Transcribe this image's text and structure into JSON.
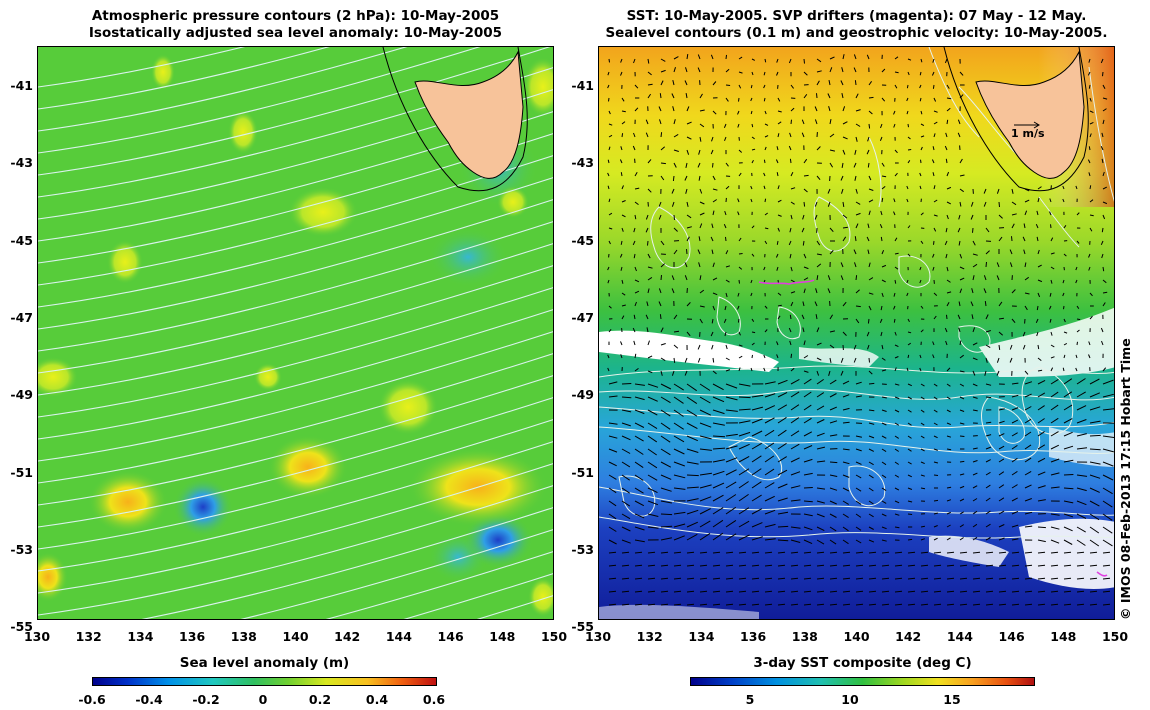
{
  "left_panel": {
    "title_line1": "Atmospheric pressure contours (2 hPa): 10-May-2005",
    "title_line2": "Isostatically adjusted sea level anomaly: 10-May-2005",
    "y_ticks": [
      "-41",
      "-43",
      "-45",
      "-47",
      "-49",
      "-51",
      "-53",
      "-55"
    ],
    "x_ticks": [
      "130",
      "132",
      "134",
      "136",
      "138",
      "140",
      "142",
      "144",
      "146",
      "148",
      "150"
    ],
    "colorbar_title": "Sea level anomaly (m)",
    "colorbar_ticks": [
      "-0.6",
      "-0.4",
      "-0.2",
      "0",
      "0.2",
      "0.4",
      "0.6"
    ]
  },
  "right_panel": {
    "title_line1": "SST: 10-May-2005. SVP drifters (magenta): 07 May - 12 May.",
    "title_line2": "Sealevel contours (0.1 m) and geostrophic velocity: 10-May-2005.",
    "y_ticks": [
      "-41",
      "-43",
      "-45",
      "-47",
      "-49",
      "-51",
      "-53",
      "-55"
    ],
    "x_ticks": [
      "130",
      "132",
      "134",
      "136",
      "138",
      "140",
      "142",
      "144",
      "146",
      "148",
      "150"
    ],
    "colorbar_title": "3-day SST composite (deg C)",
    "colorbar_ticks": [
      "5",
      "10",
      "15"
    ],
    "velocity_scale_label": "1 m/s"
  },
  "credit": "© IMOS 08-Feb-2013 17:15 Hobart Time",
  "colors": {
    "land": "#f7c39a",
    "sla_background": "#57cc3a",
    "pressure_contour": "#d9f2ec",
    "drifter": "#e040e0",
    "vector": "#000000"
  }
}
